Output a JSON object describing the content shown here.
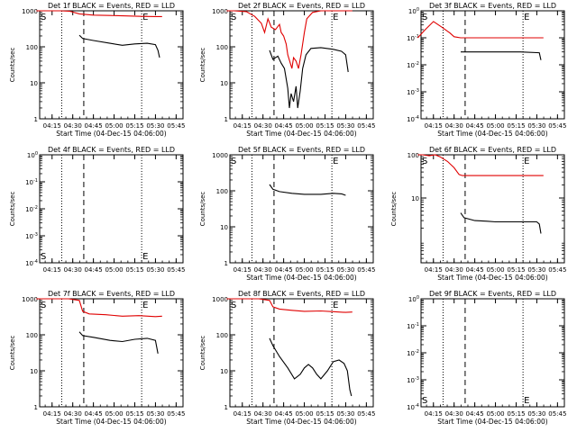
{
  "chart_data": [
    {
      "type": "line",
      "title": "Det 1f BLACK = Events, RED = LLD",
      "xlabel": "Start Time (04-Dec-15 04:06:00)",
      "ylabel": "Counts/sec",
      "yscale": "log",
      "yticks": [
        "1",
        "10",
        "100",
        "1000"
      ],
      "ylim_decades": [
        0,
        3
      ],
      "series": [
        {
          "name": "LLD",
          "color": "#e00000",
          "points": [
            [
              4.06,
              1000
            ],
            [
              4.2,
              1000
            ],
            [
              4.35,
              1000
            ],
            [
              4.46,
              980
            ],
            [
              4.58,
              820
            ],
            [
              4.75,
              760
            ],
            [
              4.95,
              740
            ],
            [
              5.15,
              720
            ],
            [
              5.33,
              700
            ],
            [
              5.5,
              690
            ],
            [
              5.58,
              690
            ]
          ]
        },
        {
          "name": "Events",
          "color": "#000000",
          "points": [
            [
              4.58,
              210
            ],
            [
              4.62,
              170
            ],
            [
              4.75,
              150
            ],
            [
              4.95,
              125
            ],
            [
              5.1,
              110
            ],
            [
              5.25,
              120
            ],
            [
              5.4,
              125
            ],
            [
              5.5,
              115
            ],
            [
              5.53,
              80
            ],
            [
              5.55,
              50
            ]
          ]
        }
      ]
    },
    {
      "type": "line",
      "title": "Det 2f BLACK = Events, RED = LLD",
      "xlabel": "Start Time (04-Dec-15 04:06:00)",
      "ylabel": "Counts/sec",
      "yscale": "log",
      "yticks": [
        "1",
        "10",
        "100",
        "1000"
      ],
      "ylim_decades": [
        0,
        3
      ],
      "series": [
        {
          "name": "LLD",
          "color": "#e00000",
          "points": [
            [
              4.06,
              1000
            ],
            [
              4.15,
              1000
            ],
            [
              4.3,
              950
            ],
            [
              4.4,
              700
            ],
            [
              4.48,
              450
            ],
            [
              4.52,
              250
            ],
            [
              4.56,
              600
            ],
            [
              4.6,
              350
            ],
            [
              4.65,
              300
            ],
            [
              4.7,
              420
            ],
            [
              4.72,
              250
            ],
            [
              4.75,
              200
            ],
            [
              4.78,
              120
            ],
            [
              4.8,
              60
            ],
            [
              4.83,
              35
            ],
            [
              4.85,
              25
            ],
            [
              4.87,
              50
            ],
            [
              4.9,
              40
            ],
            [
              4.93,
              25
            ],
            [
              4.96,
              60
            ],
            [
              5.0,
              250
            ],
            [
              5.03,
              600
            ],
            [
              5.1,
              900
            ],
            [
              5.2,
              1000
            ],
            [
              5.35,
              1000
            ],
            [
              5.5,
              1000
            ],
            [
              5.58,
              1000
            ]
          ]
        },
        {
          "name": "Events",
          "color": "#000000",
          "points": [
            [
              4.58,
              80
            ],
            [
              4.62,
              45
            ],
            [
              4.68,
              55
            ],
            [
              4.72,
              35
            ],
            [
              4.76,
              25
            ],
            [
              4.8,
              7
            ],
            [
              4.82,
              2
            ],
            [
              4.84,
              5
            ],
            [
              4.87,
              3
            ],
            [
              4.9,
              8
            ],
            [
              4.92,
              2
            ],
            [
              4.95,
              6
            ],
            [
              4.98,
              25
            ],
            [
              5.02,
              60
            ],
            [
              5.08,
              90
            ],
            [
              5.2,
              95
            ],
            [
              5.35,
              85
            ],
            [
              5.45,
              75
            ],
            [
              5.5,
              60
            ],
            [
              5.53,
              20
            ]
          ]
        }
      ]
    },
    {
      "type": "line",
      "title": "Det 3f BLACK = Events, RED = LLD",
      "xlabel": "Start Time (04-Dec-15 04:06:00)",
      "ylabel": "",
      "yscale": "log",
      "yticks": [
        "10^-4",
        "10^-3",
        "10^-2",
        "10^-1",
        "10^0"
      ],
      "ylim_decades": [
        -4,
        0
      ],
      "series": [
        {
          "name": "LLD",
          "color": "#e00000",
          "points": [
            [
              4.06,
              0.1
            ],
            [
              4.15,
              0.2
            ],
            [
              4.25,
              0.4
            ],
            [
              4.35,
              0.25
            ],
            [
              4.45,
              0.15
            ],
            [
              4.5,
              0.11
            ],
            [
              4.58,
              0.1
            ],
            [
              5.2,
              0.1
            ],
            [
              5.58,
              0.1
            ]
          ]
        },
        {
          "name": "Events",
          "color": "#000000",
          "points": [
            [
              4.58,
              0.03
            ],
            [
              4.7,
              0.03
            ],
            [
              5.0,
              0.03
            ],
            [
              5.3,
              0.03
            ],
            [
              5.53,
              0.028
            ],
            [
              5.55,
              0.015
            ]
          ]
        }
      ]
    },
    {
      "type": "line",
      "title": "Det 4f BLACK = Events, RED = LLD",
      "xlabel": "",
      "ylabel": "Counts/sec",
      "yscale": "log",
      "yticks": [
        "10^-4",
        "10^-3",
        "10^-2",
        "10^-1",
        "10^0"
      ],
      "ylim_decades": [
        -4,
        0
      ],
      "series": []
    },
    {
      "type": "line",
      "title": "Det 5f BLACK = Events, RED = LLD",
      "xlabel": "Start Time (04-Dec-15 04:06:00)",
      "ylabel": "Counts/sec",
      "yscale": "log",
      "yticks": [
        "1",
        "10",
        "100",
        "1000"
      ],
      "ylim_decades": [
        0,
        3
      ],
      "series": [
        {
          "name": "Events",
          "color": "#000000",
          "points": [
            [
              4.58,
              150
            ],
            [
              4.62,
              110
            ],
            [
              4.7,
              95
            ],
            [
              4.85,
              85
            ],
            [
              5.0,
              80
            ],
            [
              5.2,
              80
            ],
            [
              5.35,
              85
            ],
            [
              5.45,
              82
            ],
            [
              5.5,
              75
            ]
          ]
        }
      ]
    },
    {
      "type": "line",
      "title": "Det 6f BLACK = Events, RED = LLD",
      "xlabel": "Start Time (04-Dec-15 04:06:00)",
      "ylabel": "Counts/sec",
      "yscale": "log",
      "yticks": [
        "10",
        "100",
        "1000"
      ],
      "ylim_decades": [
        0.5,
        3
      ],
      "series": [
        {
          "name": "LLD",
          "color": "#e00000",
          "points": [
            [
              4.06,
              1000
            ],
            [
              4.12,
              1000
            ],
            [
              4.2,
              950
            ],
            [
              4.27,
              1000
            ],
            [
              4.33,
              900
            ],
            [
              4.42,
              700
            ],
            [
              4.5,
              500
            ],
            [
              4.56,
              350
            ],
            [
              4.6,
              330
            ],
            [
              5.0,
              330
            ],
            [
              5.3,
              330
            ],
            [
              5.58,
              330
            ]
          ]
        },
        {
          "name": "Events",
          "color": "#000000",
          "points": [
            [
              4.58,
              45
            ],
            [
              4.62,
              35
            ],
            [
              4.75,
              30
            ],
            [
              4.9,
              29
            ],
            [
              5.0,
              28
            ],
            [
              5.2,
              28
            ],
            [
              5.35,
              28
            ],
            [
              5.5,
              28
            ],
            [
              5.53,
              25
            ],
            [
              5.55,
              15
            ]
          ]
        }
      ]
    },
    {
      "type": "line",
      "title": "Det 7f BLACK = Events, RED = LLD",
      "xlabel": "Start Time (04-Dec-15 04:06:00)",
      "ylabel": "Counts/sec",
      "yscale": "log",
      "yticks": [
        "1",
        "10",
        "100",
        "1000"
      ],
      "ylim_decades": [
        0,
        3
      ],
      "series": [
        {
          "name": "LLD",
          "color": "#e00000",
          "points": [
            [
              4.06,
              1000
            ],
            [
              4.2,
              1000
            ],
            [
              4.45,
              1000
            ],
            [
              4.58,
              900
            ],
            [
              4.62,
              450
            ],
            [
              4.7,
              380
            ],
            [
              4.9,
              360
            ],
            [
              5.1,
              330
            ],
            [
              5.3,
              340
            ],
            [
              5.5,
              320
            ],
            [
              5.58,
              330
            ]
          ]
        },
        {
          "name": "Events",
          "color": "#000000",
          "points": [
            [
              4.58,
              120
            ],
            [
              4.62,
              95
            ],
            [
              4.75,
              85
            ],
            [
              4.95,
              70
            ],
            [
              5.1,
              65
            ],
            [
              5.25,
              75
            ],
            [
              5.4,
              80
            ],
            [
              5.5,
              70
            ],
            [
              5.53,
              30
            ]
          ]
        }
      ]
    },
    {
      "type": "line",
      "title": "Det 8f BLACK = Events, RED = LLD",
      "xlabel": "Start Time (04-Dec-15 04:06:00)",
      "ylabel": "Counts/sec",
      "yscale": "log",
      "yticks": [
        "1",
        "10",
        "100",
        "1000"
      ],
      "ylim_decades": [
        0,
        3
      ],
      "series": [
        {
          "name": "LLD",
          "color": "#e00000",
          "points": [
            [
              4.06,
              1000
            ],
            [
              4.2,
              1000
            ],
            [
              4.45,
              1000
            ],
            [
              4.58,
              900
            ],
            [
              4.62,
              600
            ],
            [
              4.7,
              520
            ],
            [
              4.85,
              480
            ],
            [
              5.0,
              450
            ],
            [
              5.2,
              460
            ],
            [
              5.35,
              440
            ],
            [
              5.5,
              420
            ],
            [
              5.58,
              430
            ]
          ]
        },
        {
          "name": "Events",
          "color": "#000000",
          "points": [
            [
              4.58,
              80
            ],
            [
              4.62,
              50
            ],
            [
              4.7,
              25
            ],
            [
              4.8,
              12
            ],
            [
              4.88,
              6
            ],
            [
              4.95,
              8
            ],
            [
              5.0,
              12
            ],
            [
              5.05,
              15
            ],
            [
              5.1,
              12
            ],
            [
              5.15,
              8
            ],
            [
              5.2,
              6
            ],
            [
              5.28,
              10
            ],
            [
              5.35,
              18
            ],
            [
              5.42,
              20
            ],
            [
              5.48,
              16
            ],
            [
              5.52,
              10
            ],
            [
              5.55,
              3
            ],
            [
              5.57,
              2
            ]
          ]
        }
      ]
    },
    {
      "type": "line",
      "title": "Det 9f BLACK = Events, RED = LLD",
      "xlabel": "Start Time (04-Dec-15 04:06:00)",
      "ylabel": "",
      "yscale": "log",
      "yticks": [
        "10^-4",
        "10^-3",
        "10^-2",
        "10^-1",
        "10^0"
      ],
      "ylim_decades": [
        -4,
        0
      ],
      "series": []
    }
  ],
  "shared": {
    "xticks": [
      "04:15",
      "04:30",
      "04:45",
      "05:00",
      "05:15",
      "05:30",
      "05:45"
    ],
    "x_range": [
      "04:06",
      "05:50"
    ],
    "dotted_lines": [
      "04:22",
      "05:20"
    ],
    "dashed_line": "04:38",
    "markers": {
      "start": "S",
      "end": "E"
    },
    "marker_times": {
      "start": "04:08",
      "end": "05:20"
    }
  }
}
